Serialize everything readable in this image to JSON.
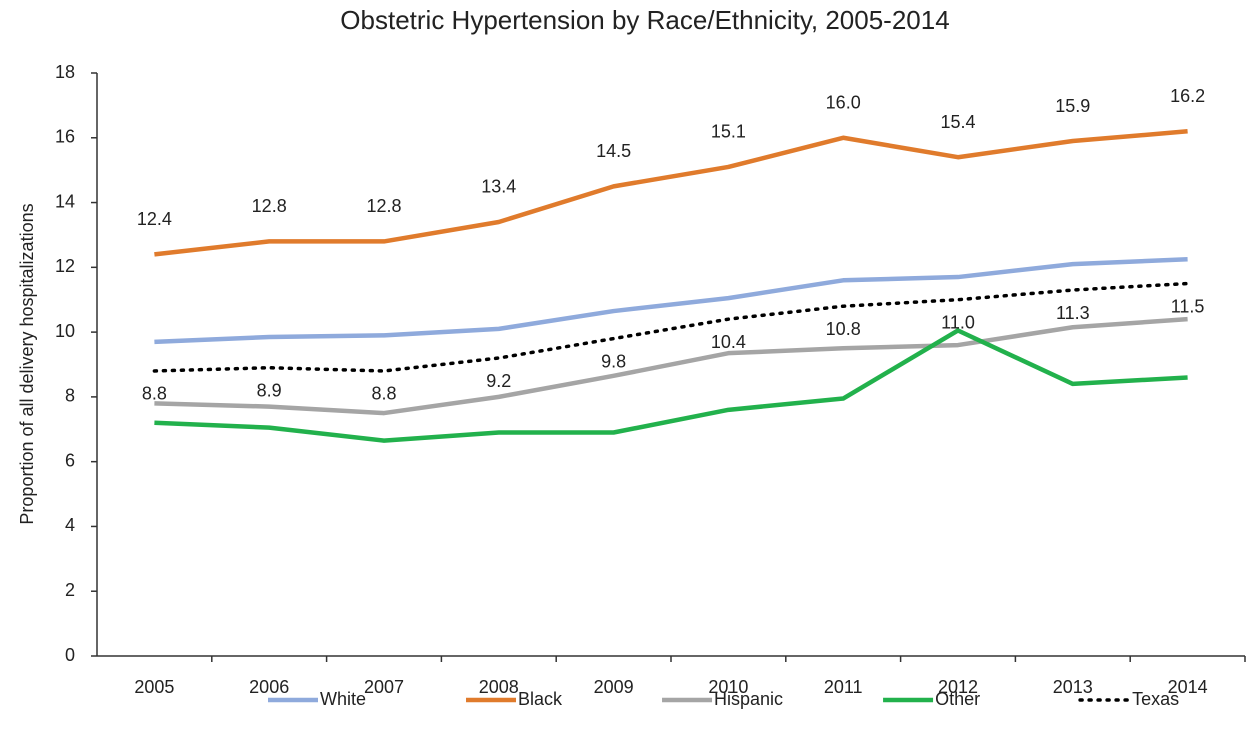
{
  "chart_data": {
    "type": "line",
    "title": "Obstetric Hypertension by Race/Ethnicity, 2005-2014",
    "y_label": "Proportion of all delivery hospitalizations",
    "categories": [
      "2005",
      "2006",
      "2007",
      "2008",
      "2009",
      "2010",
      "2011",
      "2012",
      "2013",
      "2014"
    ],
    "ylim": [
      0,
      18
    ],
    "yticks": [
      0,
      2,
      4,
      6,
      8,
      10,
      12,
      14,
      16,
      18
    ],
    "grid": false,
    "legend": "bottom",
    "series": [
      {
        "name": "White",
        "color": "#8faadc",
        "style": "solid",
        "values": [
          9.7,
          9.85,
          9.9,
          10.1,
          10.65,
          11.05,
          11.6,
          11.7,
          12.1,
          12.25
        ]
      },
      {
        "name": "Black",
        "color": "#e07b2c",
        "style": "solid",
        "values": [
          12.4,
          12.8,
          12.8,
          13.4,
          14.5,
          15.1,
          16.0,
          15.4,
          15.9,
          16.2
        ],
        "value_labels": [
          "12.4",
          "12.8",
          "12.8",
          "13.4",
          "14.5",
          "15.1",
          "16.0",
          "15.4",
          "15.9",
          "16.2"
        ]
      },
      {
        "name": "Hispanic",
        "color": "#a5a5a5",
        "style": "solid",
        "values": [
          7.8,
          7.7,
          7.5,
          8.0,
          8.65,
          9.35,
          9.5,
          9.6,
          10.15,
          10.4
        ]
      },
      {
        "name": "Other",
        "color": "#22b14c",
        "style": "solid",
        "values": [
          7.2,
          7.05,
          6.65,
          6.9,
          6.9,
          7.6,
          7.95,
          10.05,
          8.4,
          8.6
        ]
      },
      {
        "name": "Texas",
        "color": "#000000",
        "style": "dotted",
        "values": [
          8.8,
          8.9,
          8.8,
          9.2,
          9.8,
          10.4,
          10.8,
          11.0,
          11.3,
          11.5
        ],
        "value_labels": [
          "8.8",
          "8.9",
          "8.8",
          "9.2",
          "9.8",
          "10.4",
          "10.8",
          "11.0",
          "11.3",
          "11.5"
        ]
      }
    ]
  }
}
